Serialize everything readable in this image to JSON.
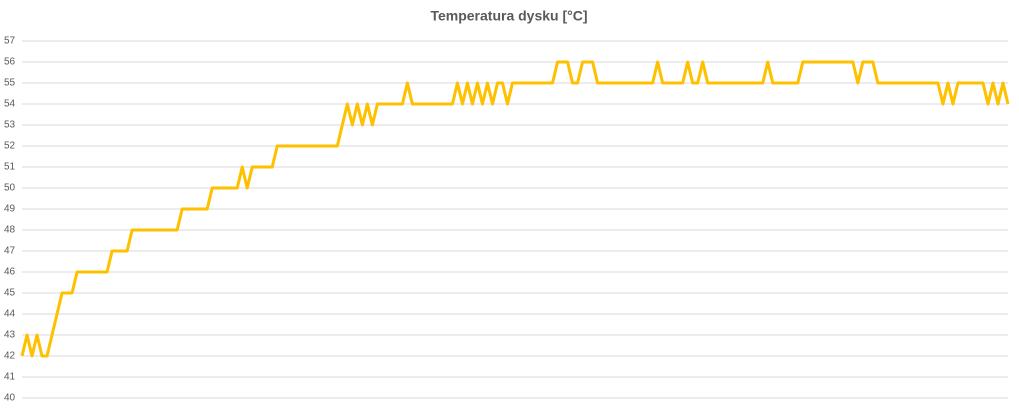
{
  "chart_data": {
    "type": "line",
    "title": "Temperatura dysku [°C]",
    "values": [
      42,
      43,
      42,
      43,
      42,
      42,
      43,
      44,
      45,
      45,
      45,
      46,
      46,
      46,
      46,
      46,
      46,
      46,
      47,
      47,
      47,
      47,
      48,
      48,
      48,
      48,
      48,
      48,
      48,
      48,
      48,
      48,
      49,
      49,
      49,
      49,
      49,
      49,
      50,
      50,
      50,
      50,
      50,
      50,
      51,
      50,
      51,
      51,
      51,
      51,
      51,
      52,
      52,
      52,
      52,
      52,
      52,
      52,
      52,
      52,
      52,
      52,
      52,
      52,
      53,
      54,
      53,
      54,
      53,
      54,
      53,
      54,
      54,
      54,
      54,
      54,
      54,
      55,
      54,
      54,
      54,
      54,
      54,
      54,
      54,
      54,
      54,
      55,
      54,
      55,
      54,
      55,
      54,
      55,
      54,
      55,
      55,
      54,
      55,
      55,
      55,
      55,
      55,
      55,
      55,
      55,
      55,
      56,
      56,
      56,
      55,
      55,
      56,
      56,
      56,
      55,
      55,
      55,
      55,
      55,
      55,
      55,
      55,
      55,
      55,
      55,
      55,
      56,
      55,
      55,
      55,
      55,
      55,
      56,
      55,
      55,
      56,
      55,
      55,
      55,
      55,
      55,
      55,
      55,
      55,
      55,
      55,
      55,
      55,
      56,
      55,
      55,
      55,
      55,
      55,
      55,
      56,
      56,
      56,
      56,
      56,
      56,
      56,
      56,
      56,
      56,
      56,
      55,
      56,
      56,
      56,
      55,
      55,
      55,
      55,
      55,
      55,
      55,
      55,
      55,
      55,
      55,
      55,
      55,
      54,
      55,
      54,
      55,
      55,
      55,
      55,
      55,
      55,
      54,
      55,
      54,
      55,
      54
    ],
    "color": "#ffc000",
    "ylim": [
      40,
      57
    ],
    "yticks": [
      40,
      41,
      42,
      43,
      44,
      45,
      46,
      47,
      48,
      49,
      50,
      51,
      52,
      53,
      54,
      55,
      56,
      57
    ],
    "grid": true
  }
}
